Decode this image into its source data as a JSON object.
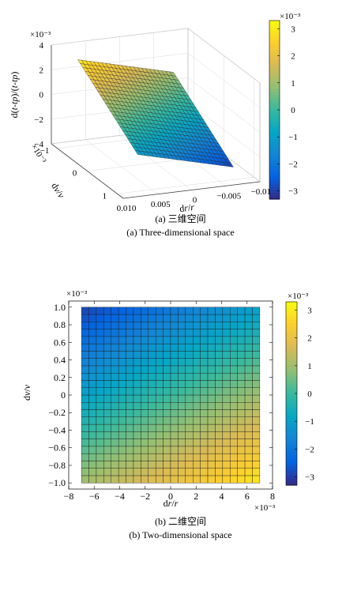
{
  "captions": {
    "a_cn": "(a) 三维空间",
    "a_en": "(a) Three-dimensional space",
    "b_cn": "(b) 二维空间",
    "b_en": "(b) Two-dimensional space"
  },
  "colormap": [
    "#352a87",
    "#0363e1",
    "#1485d4",
    "#06a7c6",
    "#38b99e",
    "#92bf73",
    "#d9ba56",
    "#fcce2e",
    "#f9fb0e"
  ],
  "chart_data": [
    {
      "type": "surface3d",
      "xlabel": "dr/r",
      "ylabel": "dv/v",
      "zlabel": "d(t-t_p)/(t-t_p)",
      "x_ticks": [
        "0.010",
        "0.005",
        "0",
        "−0.005",
        "−0.010"
      ],
      "y_ticks": [
        "−1",
        "0",
        "1"
      ],
      "y_tick_values": [
        -1,
        0,
        1
      ],
      "y_exponent": "×10⁻³",
      "z_ticks": [
        "4",
        "2",
        "0",
        "−2",
        "−4"
      ],
      "z_exponent": "×10⁻³",
      "xlim": [
        -0.01,
        0.01
      ],
      "ylim": [
        -0.0012,
        0.0012
      ],
      "zlim": [
        -0.004,
        0.004
      ],
      "x_range": [
        -0.007,
        0.007
      ],
      "y_range": [
        -0.001,
        0.001
      ],
      "mesh": [
        24,
        24
      ],
      "z_formula": "z = -2*dv/v + ~0.14*dr/r (plane)",
      "z_corners": {
        "x_min_y_min": 0.001,
        "x_max_y_min": 0.003,
        "x_min_y_max": -0.003,
        "x_max_y_max": -0.001
      },
      "colorbar": {
        "ticks": [
          "3",
          "2",
          "1",
          "0",
          "−1",
          "−2",
          "−3"
        ],
        "exponent": "×10⁻³",
        "range": [
          -0.0033,
          0.0033
        ]
      },
      "grid": true
    },
    {
      "type": "heatmap",
      "xlabel": "dr/r",
      "ylabel": "dv/v",
      "x_ticks": [
        "−8",
        "−6",
        "−4",
        "−2",
        "0",
        "2",
        "4",
        "6",
        "8"
      ],
      "x_tick_values": [
        -8,
        -6,
        -4,
        -2,
        0,
        2,
        4,
        6,
        8
      ],
      "x_exponent": "×10⁻³",
      "y_ticks": [
        "1.0",
        "0.8",
        "0.6",
        "0.4",
        "0.2",
        "0",
        "−0.2",
        "−0.4",
        "−0.6",
        "−0.8",
        "−1.0"
      ],
      "y_tick_values": [
        1.0,
        0.8,
        0.6,
        0.4,
        0.2,
        0,
        -0.2,
        -0.4,
        -0.6,
        -0.8,
        -1.0
      ],
      "y_exponent": "×10⁻³",
      "xlim": [
        -0.008,
        0.008
      ],
      "ylim": [
        -0.00107,
        0.00107
      ],
      "x_range": [
        -0.007,
        0.007
      ],
      "y_range": [
        -0.001,
        0.001
      ],
      "mesh": [
        24,
        24
      ],
      "colorbar": {
        "ticks": [
          "3",
          "2",
          "1",
          "0",
          "−1",
          "−2",
          "−3"
        ],
        "exponent": "×10⁻³",
        "range": [
          -0.0033,
          0.0033
        ]
      },
      "grid": false
    }
  ]
}
